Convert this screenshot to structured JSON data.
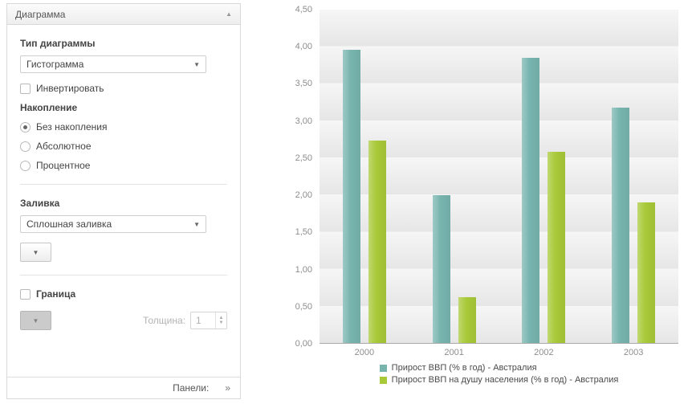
{
  "sidebar": {
    "title": "Диаграмма",
    "collapse_icon": "▲",
    "chart_type_label": "Тип диаграммы",
    "chart_type_value": "Гистограмма",
    "invert_label": "Инвертировать",
    "stacking_label": "Накопление",
    "stacking_options": [
      {
        "label": "Без накопления",
        "selected": true
      },
      {
        "label": "Абсолютное",
        "selected": false
      },
      {
        "label": "Процентное",
        "selected": false
      }
    ],
    "fill_label": "Заливка",
    "fill_value": "Сплошная заливка",
    "border_label": "Граница",
    "thickness_label": "Толщина:",
    "thickness_value": "1",
    "panels_label": "Панели:",
    "panels_chevron": "»"
  },
  "chart_data": {
    "type": "bar",
    "categories": [
      "2000",
      "2001",
      "2002",
      "2003"
    ],
    "series": [
      {
        "name": "Прирост ВВП (% в год) - Австралия",
        "color": "#77b4ae",
        "values": [
          3.96,
          2.0,
          3.85,
          3.18
        ]
      },
      {
        "name": "Прирост ВВП на душу населения (% в год) - Австралия",
        "color": "#a8c938",
        "values": [
          2.73,
          0.62,
          2.58,
          1.9
        ]
      }
    ],
    "title": "",
    "xlabel": "",
    "ylabel": "",
    "ylim": [
      0,
      4.5
    ],
    "ytick_step": 0.5,
    "yticks": [
      "0,00",
      "0,50",
      "1,00",
      "1,50",
      "2,00",
      "2,50",
      "3,00",
      "3,50",
      "4,00",
      "4,50"
    ],
    "grid": "banded-background",
    "legend_position": "bottom"
  }
}
